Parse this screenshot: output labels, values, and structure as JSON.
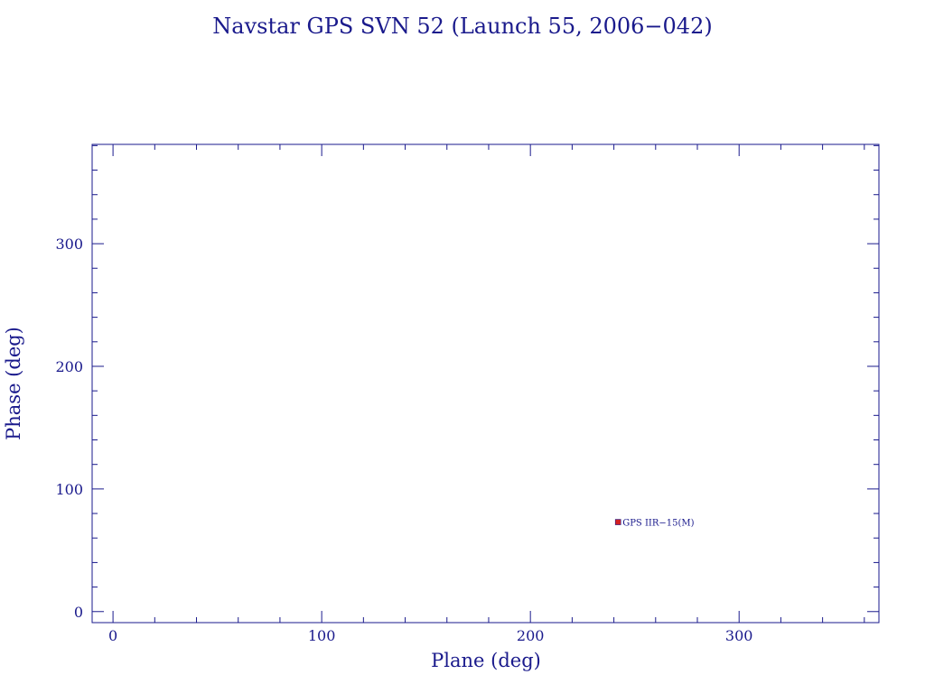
{
  "chart_data": {
    "type": "scatter",
    "title": "Navstar GPS SVN 52 (Launch 55, 2006−042)",
    "xlabel": "Plane (deg)",
    "ylabel": "Phase (deg)",
    "xlim": [
      -10,
      367
    ],
    "ylim": [
      -9,
      381
    ],
    "xticks": [
      0,
      100,
      200,
      300
    ],
    "yticks": [
      0,
      100,
      200,
      300
    ],
    "x_minor_step": 20,
    "y_minor_step": 20,
    "grid": false,
    "points": [
      {
        "x": 242,
        "y": 73,
        "label": "GPS IIR−15(M)"
      }
    ],
    "colors": {
      "axis": "#1a1a8c",
      "marker": "#d42020"
    }
  }
}
